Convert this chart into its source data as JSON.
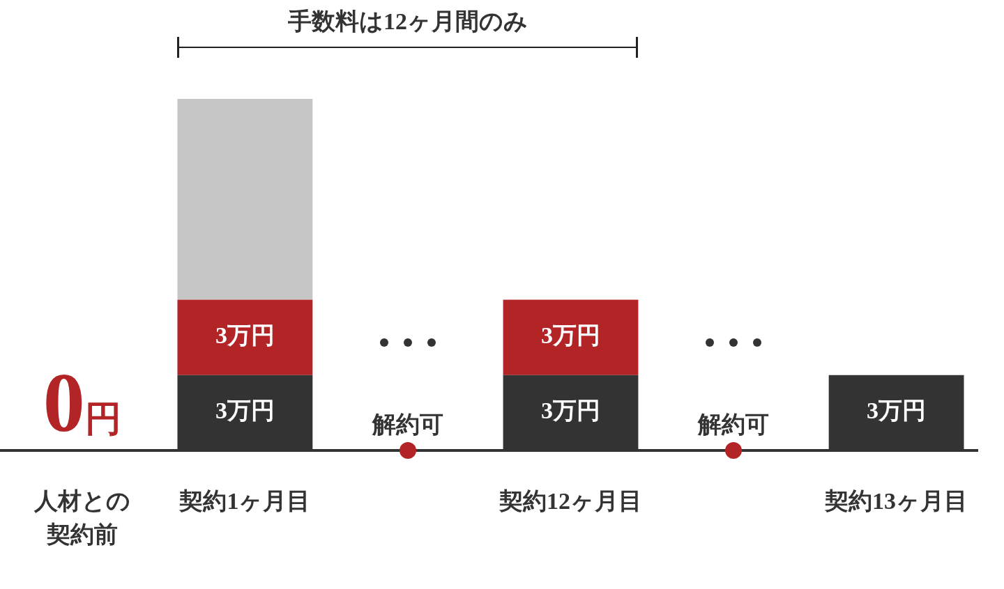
{
  "chart_data": {
    "type": "bar",
    "title": "手数料は12ヶ月間のみ",
    "stacked": true,
    "ylim": [
      0,
      14
    ],
    "tick_labels": "x",
    "categories": [
      "人材との契約前",
      "契約1ヶ月目",
      null,
      "契約12ヶ月目",
      null,
      "契約13ヶ月目"
    ],
    "series": [
      {
        "color": "#333333",
        "values": [
          0,
          3,
          null,
          3,
          null,
          3
        ],
        "value_labels": [
          null,
          "3万円",
          null,
          "3万円",
          null,
          "3万円"
        ]
      },
      {
        "color": "#b22426",
        "values": [
          null,
          3,
          null,
          3,
          null,
          null
        ],
        "value_labels": [
          null,
          "3万円",
          null,
          "3万円",
          null,
          null
        ]
      },
      {
        "color": "#c6c6c6",
        "values": [
          null,
          8,
          null,
          null,
          null,
          null
        ]
      }
    ],
    "annotations": [
      {
        "text": "0円",
        "x": "人材との契約前",
        "y": 0
      },
      "解約可",
      "解約可"
    ],
    "grid": false,
    "legend": false
  }
}
